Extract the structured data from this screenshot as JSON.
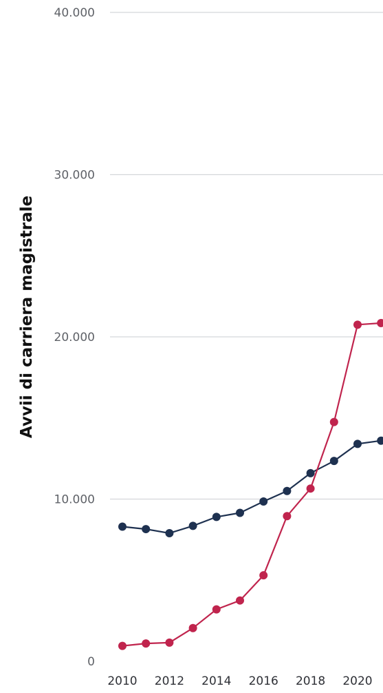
{
  "chart_data": {
    "type": "line",
    "title": "",
    "xlabel": "",
    "ylabel": "Avvii di carriera magistrale",
    "x": [
      2010,
      2011,
      2012,
      2013,
      2014,
      2015,
      2016,
      2017,
      2018,
      2019,
      2020,
      2021
    ],
    "x_tick_labels": [
      "2010",
      "2012",
      "2014",
      "2016",
      "2018",
      "2020"
    ],
    "ylim": [
      0,
      40000
    ],
    "y_tick_labels": [
      "0",
      "10.000",
      "20.000",
      "30.000",
      "40.000"
    ],
    "y_ticks": [
      0,
      10000,
      20000,
      30000,
      40000
    ],
    "grid": true,
    "series": [
      {
        "color": "#1e3150",
        "values": [
          8300,
          8150,
          7900,
          8350,
          8900,
          9150,
          9850,
          10500,
          11600,
          12350,
          13400,
          13600
        ]
      },
      {
        "color": "#c0244d",
        "values": [
          950,
          1100,
          1150,
          2050,
          3200,
          3750,
          5300,
          8950,
          10650,
          14750,
          20750,
          20850
        ]
      }
    ]
  }
}
